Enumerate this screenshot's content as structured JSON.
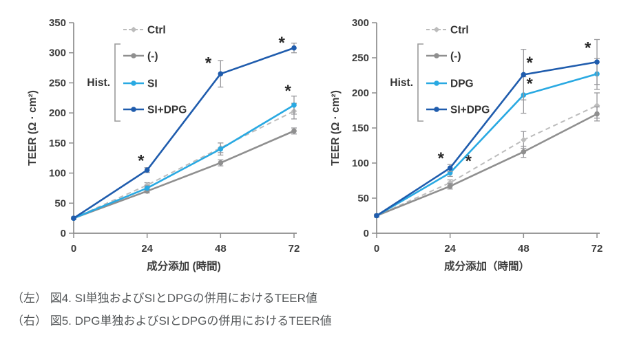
{
  "colors": {
    "background": "#ffffff",
    "axis": "#8c8c8c",
    "tick_text": "#3d3d3d",
    "error_bar": "#98989c",
    "asterisk": "#2a2a2a",
    "caption_text": "#55585a",
    "accent_light_blue": "#29a9e2",
    "accent_dark_blue": "#1f5cad",
    "gray_series": "#8f8f8f",
    "light_gray_series": "#bcbcbc"
  },
  "captions": [
    {
      "label": "（左） 図4. SI単独およびSIとDPGの併用におけるTEER値"
    },
    {
      "label": "（右） 図5. DPG単独およびSIとDPGの併用におけるTEER値"
    }
  ],
  "chart_data": [
    {
      "type": "line",
      "position": "left",
      "figure": "図4",
      "xlabel": "成分添加 (時間)",
      "ylabel": "TEER (Ω · cm²)",
      "x": [
        0,
        24,
        48,
        72
      ],
      "xticks": [
        0,
        24,
        48,
        72
      ],
      "xlim": [
        0,
        72
      ],
      "ylim": [
        0,
        350
      ],
      "yticks": [
        0,
        50,
        100,
        150,
        200,
        250,
        300,
        350
      ],
      "legend_title": "Hist.",
      "legend_position": "upper-left-inside",
      "grid": false,
      "series": [
        {
          "name": "Ctrl",
          "color": "#bcbcbc",
          "dashed": true,
          "marker": "diamond",
          "bracket": false,
          "values": [
            25,
            80,
            142,
            203
          ],
          "errors": [
            2,
            4,
            8,
            13
          ]
        },
        {
          "name": "(-)",
          "color": "#8f8f8f",
          "dashed": false,
          "marker": "circle",
          "bracket": true,
          "values": [
            25,
            70,
            117,
            170
          ],
          "errors": [
            2,
            3,
            5,
            5
          ]
        },
        {
          "name": "SI",
          "color": "#29a9e2",
          "dashed": false,
          "marker": "circle",
          "bracket": true,
          "values": [
            25,
            75,
            140,
            213
          ],
          "errors": [
            2,
            4,
            10,
            15
          ]
        },
        {
          "name": "SI+DPG",
          "color": "#1f5cad",
          "dashed": false,
          "marker": "circle",
          "bracket": true,
          "values": [
            25,
            105,
            265,
            308
          ],
          "errors": [
            2,
            4,
            22,
            8
          ]
        }
      ],
      "significance_marks": [
        {
          "x": 22,
          "y": 122
        },
        {
          "x": 44,
          "y": 284
        },
        {
          "x": 70,
          "y": 238
        },
        {
          "x": 68,
          "y": 318
        }
      ],
      "significance_symbol": "*"
    },
    {
      "type": "line",
      "position": "right",
      "figure": "図5",
      "xlabel": "成分添加（時間）",
      "ylabel": "TEER (Ω · cm²)",
      "x": [
        0,
        24,
        48,
        72
      ],
      "xticks": [
        0,
        24,
        48,
        72
      ],
      "xlim": [
        0,
        72
      ],
      "ylim": [
        0,
        300
      ],
      "yticks": [
        0,
        50,
        100,
        150,
        200,
        250,
        300
      ],
      "legend_title": "Hist.",
      "legend_position": "upper-left-inside",
      "grid": false,
      "series": [
        {
          "name": "Ctrl",
          "color": "#bcbcbc",
          "dashed": true,
          "marker": "diamond",
          "bracket": false,
          "values": [
            25,
            72,
            133,
            182
          ],
          "errors": [
            2,
            4,
            12,
            18
          ]
        },
        {
          "name": "(-)",
          "color": "#8f8f8f",
          "dashed": false,
          "marker": "circle",
          "bracket": true,
          "values": [
            25,
            67,
            116,
            170
          ],
          "errors": [
            2,
            4,
            8,
            10
          ]
        },
        {
          "name": "DPG",
          "color": "#29a9e2",
          "dashed": false,
          "marker": "circle",
          "bracket": true,
          "values": [
            25,
            86,
            197,
            227
          ],
          "errors": [
            2,
            5,
            26,
            22
          ]
        },
        {
          "name": "SI+DPG",
          "color": "#1f5cad",
          "dashed": false,
          "marker": "circle",
          "bracket": true,
          "values": [
            25,
            93,
            226,
            244
          ],
          "errors": [
            2,
            5,
            36,
            32
          ]
        }
      ],
      "significance_marks": [
        {
          "x": 21,
          "y": 108
        },
        {
          "x": 30,
          "y": 104
        },
        {
          "x": 50,
          "y": 244
        },
        {
          "x": 50,
          "y": 214
        },
        {
          "x": 69,
          "y": 265
        }
      ],
      "significance_symbol": "*"
    }
  ]
}
